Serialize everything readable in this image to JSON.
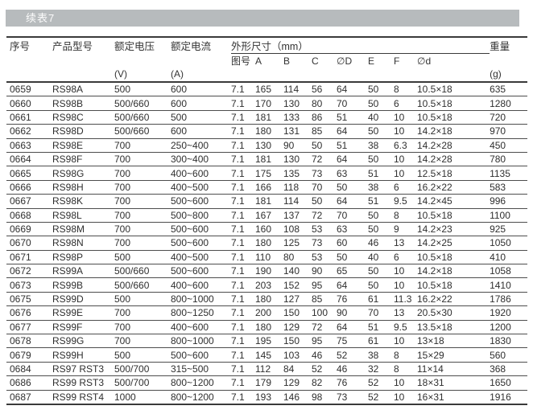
{
  "title_bar": {
    "label": "续表7"
  },
  "table": {
    "header": {
      "serial": "序号",
      "model": "产品型号",
      "voltage": "额定电压",
      "current": "额定电流",
      "dimensions": "外形尺寸（mm）",
      "weight": "重量",
      "sub_columns": [
        "图号",
        "A",
        "B",
        "C",
        "∅D",
        "E",
        "F",
        "∅d"
      ],
      "units": {
        "voltage": "(V)",
        "current": "(A)",
        "weight": "(g)"
      }
    },
    "rows": [
      [
        "0659",
        "RS98A",
        "500",
        "600",
        "7.1",
        "165",
        "114",
        "56",
        "64",
        "50",
        "8",
        "10.5×18",
        "635"
      ],
      [
        "0660",
        "RS98B",
        "500/660",
        "600",
        "7.1",
        "170",
        "130",
        "80",
        "70",
        "50",
        "6",
        "10.5×18",
        "1280"
      ],
      [
        "0661",
        "RS98C",
        "500/660",
        "500",
        "7.1",
        "181",
        "133",
        "86",
        "51",
        "40",
        "10",
        "10.5×18",
        "720"
      ],
      [
        "0662",
        "RS98D",
        "500/660",
        "600",
        "7.1",
        "180",
        "131",
        "85",
        "64",
        "50",
        "10",
        "14.2×18",
        "970"
      ],
      [
        "0663",
        "RS98E",
        "700",
        "250~400",
        "7.1",
        "130",
        "90",
        "50",
        "51",
        "38",
        "6.3",
        "14.2×28",
        "450"
      ],
      [
        "0664",
        "RS98F",
        "700",
        "300~400",
        "7.1",
        "181",
        "130",
        "72",
        "64",
        "50",
        "10",
        "14.2×28",
        "780"
      ],
      [
        "0665",
        "RS98G",
        "700",
        "400~600",
        "7.1",
        "175",
        "135",
        "73",
        "63",
        "51",
        "10",
        "12.5×18",
        "1135"
      ],
      [
        "0666",
        "RS98H",
        "700",
        "400~500",
        "7.1",
        "166",
        "118",
        "70",
        "50",
        "38",
        "6",
        "16.2×22",
        "583"
      ],
      [
        "0667",
        "RS98K",
        "700",
        "500~600",
        "7.1",
        "181",
        "114",
        "50",
        "64",
        "51",
        "9.5",
        "14.2×45",
        "996"
      ],
      [
        "0668",
        "RS98L",
        "700",
        "500~800",
        "7.1",
        "167",
        "137",
        "72",
        "70",
        "50",
        "8",
        "10.5×18",
        "1100"
      ],
      [
        "0669",
        "RS98M",
        "700",
        "500~600",
        "7.1",
        "160",
        "108",
        "53",
        "63",
        "50",
        "9",
        "14.2×23",
        "925"
      ],
      [
        "0670",
        "RS98N",
        "700",
        "500~600",
        "7.1",
        "180",
        "125",
        "73",
        "60",
        "46",
        "13",
        "14.2×25",
        "1050"
      ],
      [
        "0671",
        "RS98P",
        "500",
        "400~500",
        "7.1",
        "110",
        "80",
        "53",
        "50",
        "40",
        "6",
        "10.5×18",
        "410"
      ],
      [
        "0672",
        "RS99A",
        "500/660",
        "500~600",
        "7.1",
        "190",
        "140",
        "90",
        "65",
        "50",
        "10",
        "14.2×18",
        "1058"
      ],
      [
        "0673",
        "RS99B",
        "500/660",
        "400~600",
        "7.1",
        "203",
        "152",
        "95",
        "64",
        "50",
        "10",
        "10.5×18",
        "1410"
      ],
      [
        "0675",
        "RS99D",
        "500",
        "800~1000",
        "7.1",
        "180",
        "127",
        "85",
        "76",
        "61",
        "11.3",
        "16.2×22",
        "1786"
      ],
      [
        "0676",
        "RS99E",
        "700",
        "800~1250",
        "7.1",
        "200",
        "150",
        "100",
        "90",
        "70",
        "13",
        "20.5×30",
        "1920"
      ],
      [
        "0677",
        "RS99F",
        "700",
        "400~600",
        "7.1",
        "180",
        "129",
        "72",
        "64",
        "51",
        "9.5",
        "13.5×18",
        "1200"
      ],
      [
        "0678",
        "RS99G",
        "700",
        "800~1000",
        "7.1",
        "195",
        "150",
        "95",
        "75",
        "61",
        "10",
        "13×18",
        "1830"
      ],
      [
        "0679",
        "RS99H",
        "500",
        "500~600",
        "7.1",
        "145",
        "103",
        "46",
        "52",
        "38",
        "8",
        "15×29",
        "560"
      ],
      [
        "0684",
        "RS97 RST3",
        "500/700",
        "315~500",
        "7.1",
        "112",
        "84",
        "52",
        "46",
        "32",
        "8",
        "11×14",
        "368"
      ],
      [
        "0686",
        "RS99 RST3",
        "500/700",
        "800~1200",
        "7.1",
        "179",
        "129",
        "82",
        "76",
        "52",
        "10",
        "18×31",
        "1650"
      ],
      [
        "0687",
        "RS99 RST4",
        "1000",
        "800~1200",
        "7.1",
        "193",
        "146",
        "98",
        "73",
        "52",
        "10",
        "16×31",
        "1916"
      ]
    ]
  },
  "colors": {
    "title_bar_bg": "#b7bbbd",
    "title_bar_text": "#fbfbfb",
    "text": "#2f2f2f",
    "line_heavy": "#3a3a3a",
    "line_light": "#4d4d4d"
  }
}
